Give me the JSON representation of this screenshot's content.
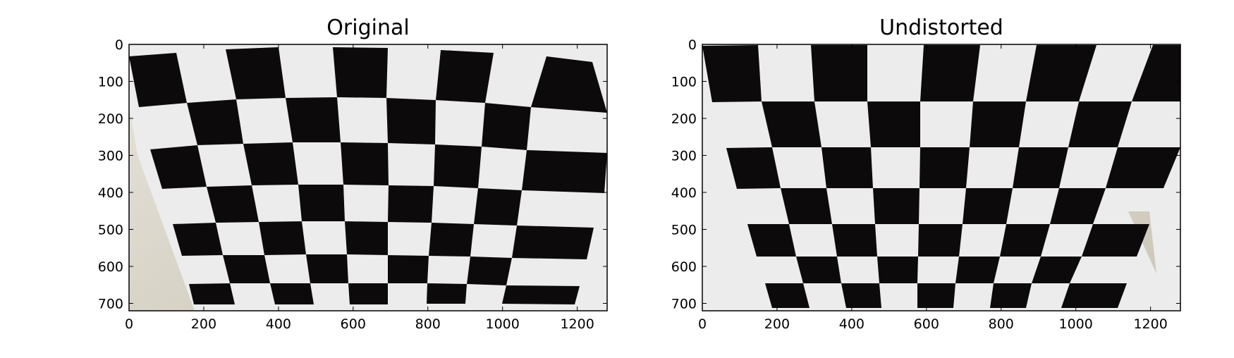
{
  "figure": {
    "panels": [
      {
        "id": "original",
        "title": "Original",
        "image_content": "photo of a black and white checkerboard calibration pattern on a wall, with barrel lens distortion",
        "x_ticks": [
          "0",
          "200",
          "400",
          "600",
          "800",
          "1000",
          "1200"
        ],
        "y_ticks": [
          "0",
          "100",
          "200",
          "300",
          "400",
          "500",
          "600",
          "700"
        ]
      },
      {
        "id": "undistorted",
        "title": "Undistorted",
        "image_content": "the same checkerboard photo after lens distortion correction, showing straight lines",
        "x_ticks": [
          "0",
          "200",
          "400",
          "600",
          "800",
          "1000",
          "1200"
        ],
        "y_ticks": [
          "0",
          "100",
          "200",
          "300",
          "400",
          "500",
          "600",
          "700"
        ]
      }
    ],
    "colors": {
      "square_dark": "#0d0a0b",
      "square_light": "#ececec",
      "wall": "#d4cfc2",
      "axes": "#000000"
    }
  }
}
